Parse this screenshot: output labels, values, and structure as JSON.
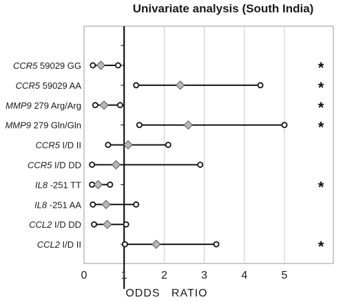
{
  "chart_data": {
    "type": "forest",
    "title": "Univariate analysis (South India)",
    "xlabel": "ODDS   RATIO",
    "xlim": [
      0,
      6.3
    ],
    "xticks": [
      0,
      1,
      2,
      3,
      4,
      5
    ],
    "tick_labels": [
      "0",
      "1",
      "2",
      "3",
      "4",
      "5"
    ],
    "reference_line": 1,
    "significance_marker": "*",
    "rows": [
      {
        "gene": "CCR5",
        "variant": " 59029 GG",
        "or": 0.42,
        "low": 0.22,
        "high": 0.85,
        "significant": true
      },
      {
        "gene": "CCR5",
        "variant": " 59029 AA",
        "or": 2.4,
        "low": 1.3,
        "high": 4.4,
        "significant": true
      },
      {
        "gene": "MMP9",
        "variant": " 279 Arg/Arg",
        "or": 0.5,
        "low": 0.28,
        "high": 0.9,
        "significant": true
      },
      {
        "gene": "MMP9",
        "variant": " 279 Gln/Gln",
        "or": 2.6,
        "low": 1.38,
        "high": 5.0,
        "significant": true
      },
      {
        "gene": "CCR5",
        "variant": " I/D II",
        "or": 1.1,
        "low": 0.6,
        "high": 2.1,
        "significant": false
      },
      {
        "gene": "CCR5",
        "variant": " I/D DD",
        "or": 0.8,
        "low": 0.2,
        "high": 2.9,
        "significant": false
      },
      {
        "gene": "IL8",
        "variant": " -251 TT",
        "or": 0.35,
        "low": 0.2,
        "high": 0.65,
        "significant": true
      },
      {
        "gene": "IL8",
        "variant": " -251 AA",
        "or": 0.55,
        "low": 0.22,
        "high": 1.3,
        "significant": false
      },
      {
        "gene": "CCL2",
        "variant": " I/D DD",
        "or": 0.58,
        "low": 0.25,
        "high": 1.05,
        "significant": false
      },
      {
        "gene": "CCL2",
        "variant": " I/D II",
        "or": 1.8,
        "low": 1.02,
        "high": 3.3,
        "significant": true
      }
    ],
    "colors": {
      "diamond_fill": "#b8b8b8",
      "line": "#111111",
      "frame": "#999999"
    }
  }
}
